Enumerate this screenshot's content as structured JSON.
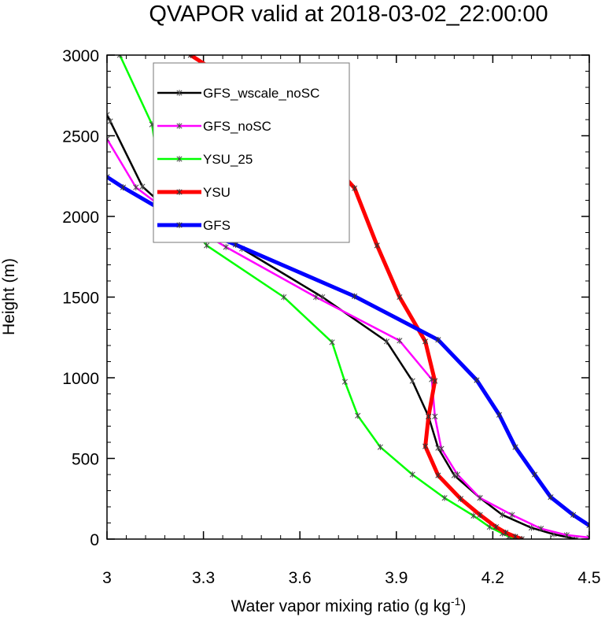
{
  "chart_data": {
    "type": "line",
    "title": "QVAPOR valid at 2018-03-02_22:00:00",
    "xlabel_main": "Water vapor mixing ratio (g kg",
    "xlabel_sup": "-1",
    "xlabel_end": ")",
    "ylabel": "Height (m)",
    "xlim": [
      3.0,
      4.5
    ],
    "ylim": [
      0,
      3000
    ],
    "xticks": [
      3.0,
      3.3,
      3.6,
      3.9,
      4.2,
      4.5
    ],
    "xtick_labels": [
      "3",
      "3.3",
      "3.6",
      "3.9",
      "4.2",
      "4.5"
    ],
    "yticks": [
      0,
      500,
      1000,
      1500,
      2000,
      2500,
      3000
    ],
    "ytick_labels": [
      "0",
      "500",
      "1000",
      "1500",
      "2000",
      "2500",
      "3000"
    ],
    "legend_position": "top-left",
    "series": [
      {
        "name": "GFS_wscale_noSC",
        "color": "#000000",
        "points": [
          [
            4.46,
            0
          ],
          [
            4.39,
            30
          ],
          [
            4.32,
            70
          ],
          [
            4.23,
            150
          ],
          [
            4.16,
            255
          ],
          [
            4.08,
            395
          ],
          [
            4.03,
            565
          ],
          [
            4.0,
            760
          ],
          [
            3.95,
            980
          ],
          [
            3.87,
            1225
          ],
          [
            3.67,
            1500
          ],
          [
            3.42,
            1800
          ],
          [
            3.22,
            1990
          ],
          [
            3.11,
            2185
          ],
          [
            3.01,
            2590
          ],
          [
            3.0,
            2630
          ]
        ]
      },
      {
        "name": "GFS_noSC",
        "color": "#ff00ff",
        "points": [
          [
            4.5,
            10
          ],
          [
            4.43,
            25
          ],
          [
            4.35,
            65
          ],
          [
            4.26,
            150
          ],
          [
            4.16,
            255
          ],
          [
            4.09,
            400
          ],
          [
            4.04,
            560
          ],
          [
            4.02,
            760
          ],
          [
            4.01,
            990
          ],
          [
            3.91,
            1230
          ],
          [
            3.65,
            1500
          ],
          [
            3.37,
            1810
          ],
          [
            3.19,
            2030
          ],
          [
            3.09,
            2180
          ],
          [
            3.0,
            2480
          ]
        ]
      },
      {
        "name": "YSU_25",
        "color": "#00ff00",
        "points": [
          [
            4.29,
            0
          ],
          [
            4.25,
            15
          ],
          [
            4.23,
            35
          ],
          [
            4.19,
            75
          ],
          [
            4.14,
            145
          ],
          [
            4.05,
            255
          ],
          [
            3.95,
            400
          ],
          [
            3.85,
            570
          ],
          [
            3.78,
            765
          ],
          [
            3.74,
            975
          ],
          [
            3.7,
            1220
          ],
          [
            3.55,
            1500
          ],
          [
            3.31,
            1820
          ],
          [
            3.17,
            2170
          ],
          [
            3.14,
            2570
          ],
          [
            3.04,
            3000
          ]
        ]
      },
      {
        "name": "YSU",
        "color": "#ff0000",
        "points": [
          [
            4.29,
            0
          ],
          [
            4.27,
            15
          ],
          [
            4.24,
            40
          ],
          [
            4.21,
            75
          ],
          [
            4.16,
            150
          ],
          [
            4.1,
            250
          ],
          [
            4.03,
            395
          ],
          [
            3.99,
            575
          ],
          [
            4.0,
            760
          ],
          [
            4.02,
            980
          ],
          [
            3.99,
            1225
          ],
          [
            3.91,
            1500
          ],
          [
            3.84,
            1820
          ],
          [
            3.77,
            2175
          ],
          [
            3.59,
            2575
          ],
          [
            3.26,
            3000
          ]
        ]
      },
      {
        "name": "GFS",
        "color": "#0000ff",
        "points": [
          [
            4.5,
            85
          ],
          [
            4.45,
            150
          ],
          [
            4.38,
            260
          ],
          [
            4.33,
            400
          ],
          [
            4.27,
            570
          ],
          [
            4.22,
            770
          ],
          [
            4.15,
            985
          ],
          [
            4.03,
            1235
          ],
          [
            3.77,
            1505
          ],
          [
            3.4,
            1825
          ],
          [
            3.24,
            1960
          ],
          [
            3.05,
            2180
          ],
          [
            3.0,
            2245
          ]
        ]
      }
    ]
  }
}
